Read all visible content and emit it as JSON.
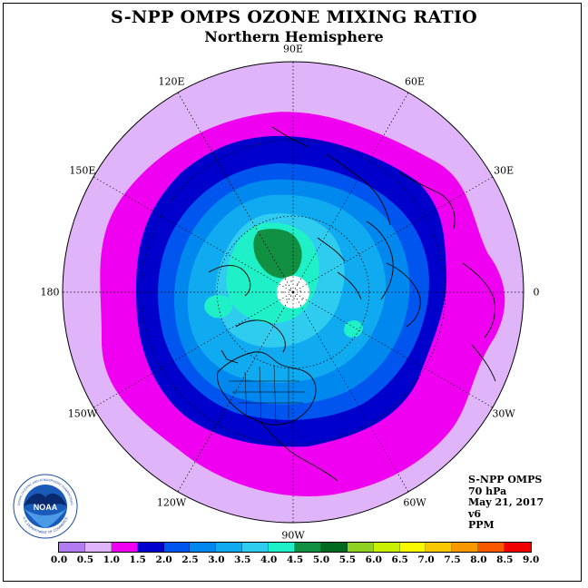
{
  "title": "S-NPP OMPS OZONE MIXING RATIO",
  "subtitle": "Northern Hemisphere",
  "longitude_labels": [
    {
      "text": "90E",
      "lon": 90
    },
    {
      "text": "60E",
      "lon": 60
    },
    {
      "text": "30E",
      "lon": 30
    },
    {
      "text": "0",
      "lon": 0
    },
    {
      "text": "30W",
      "lon": -30
    },
    {
      "text": "60W",
      "lon": -60
    },
    {
      "text": "90W",
      "lon": -90
    },
    {
      "text": "120W",
      "lon": -120
    },
    {
      "text": "150W",
      "lon": -150
    },
    {
      "text": "180",
      "lon": 180
    },
    {
      "text": "150E",
      "lon": 150
    },
    {
      "text": "120E",
      "lon": 120
    }
  ],
  "info": {
    "instrument": "S-NPP OMPS",
    "level": "70 hPa",
    "date": "May 21, 2017",
    "version": "v6",
    "units": "PPM"
  },
  "colorbar": {
    "ticks": [
      "0.0",
      "0.5",
      "1.0",
      "1.5",
      "2.0",
      "2.5",
      "3.0",
      "3.5",
      "4.0",
      "4.5",
      "5.0",
      "5.5",
      "6.0",
      "6.5",
      "7.0",
      "7.5",
      "8.0",
      "8.5",
      "9.0"
    ],
    "colors": [
      "#b07cf0",
      "#e0b4f8",
      "#f000f0",
      "#0000cc",
      "#0055ee",
      "#0088ee",
      "#10aaf0",
      "#30ccf0",
      "#20f0c8",
      "#109040",
      "#006820",
      "#90d020",
      "#c8f000",
      "#f8f800",
      "#f8c800",
      "#f89800",
      "#f85800",
      "#f00000",
      "#905030"
    ]
  },
  "logo": {
    "center_text": "NOAA",
    "ring_text_top": "NATIONAL OCEANIC AND ATMOSPHERIC ADMINISTRATION",
    "ring_text_bottom": "U.S. DEPARTMENT OF COMMERCE"
  }
}
